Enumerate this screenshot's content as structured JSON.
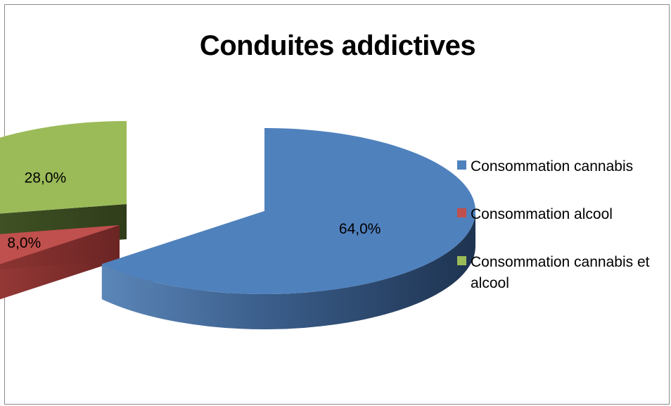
{
  "chart_data": {
    "type": "pie",
    "title": "Conduites addictives",
    "legend_position": "right",
    "slices": [
      {
        "name": "Consommation cannabis",
        "value": 64.0,
        "label": "64,0%",
        "color": "#4f81bd"
      },
      {
        "name": "Consommation alcool",
        "value": 8.0,
        "label": "8,0%",
        "color": "#c0504d"
      },
      {
        "name": "Consommation cannabis et alcool",
        "value": 28.0,
        "label": "28,0%",
        "color": "#9bbb59"
      }
    ]
  }
}
